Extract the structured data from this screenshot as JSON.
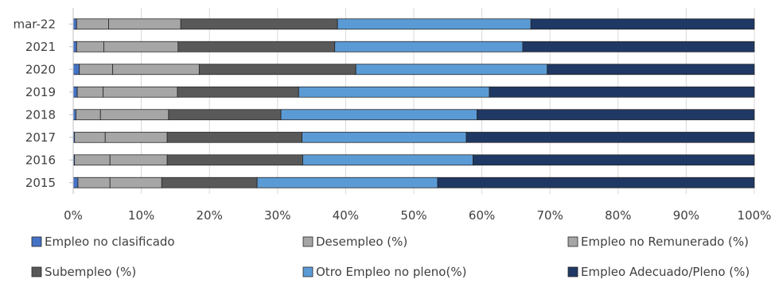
{
  "chart_data": {
    "type": "bar",
    "orientation": "horizontal",
    "stacked": true,
    "percent_stacked": true,
    "title": "",
    "xlabel": "",
    "ylabel": "",
    "xlim": [
      0,
      100
    ],
    "x_ticks": [
      "0%",
      "10%",
      "20%",
      "30%",
      "40%",
      "50%",
      "60%",
      "70%",
      "80%",
      "90%",
      "100%"
    ],
    "grid": true,
    "legend_position": "bottom",
    "categories": [
      "mar-22",
      "2021",
      "2020",
      "2019",
      "2018",
      "2017",
      "2016",
      "2015"
    ],
    "series": [
      {
        "name": "Empleo no clasificado",
        "color": "#4472c4",
        "values": [
          0.5,
          0.5,
          0.9,
          0.6,
          0.4,
          0.2,
          0.2,
          0.7
        ]
      },
      {
        "name": "Desempleo (%)",
        "color": "#a6a6a6",
        "values": [
          4.7,
          4.0,
          4.9,
          3.8,
          3.6,
          4.5,
          5.2,
          4.7
        ]
      },
      {
        "name": "Empleo no Remunerado (%)",
        "color": "#a6a6a6",
        "values": [
          10.6,
          10.9,
          12.7,
          10.9,
          10.0,
          9.1,
          8.4,
          7.6
        ]
      },
      {
        "name": "Subempleo (%)",
        "color": "#595959",
        "values": [
          23.0,
          23.0,
          23.0,
          17.8,
          16.5,
          19.8,
          19.9,
          14.0
        ]
      },
      {
        "name": "Otro Empleo no pleno(%)",
        "color": "#5b9bd5",
        "values": [
          28.4,
          27.6,
          28.1,
          28.0,
          28.8,
          24.1,
          25.0,
          26.5
        ]
      },
      {
        "name": "Empleo Adecuado/Pleno (%)",
        "color": "#1f3864",
        "values": [
          32.8,
          34.0,
          30.4,
          38.9,
          40.7,
          42.3,
          41.3,
          46.5
        ]
      }
    ]
  }
}
